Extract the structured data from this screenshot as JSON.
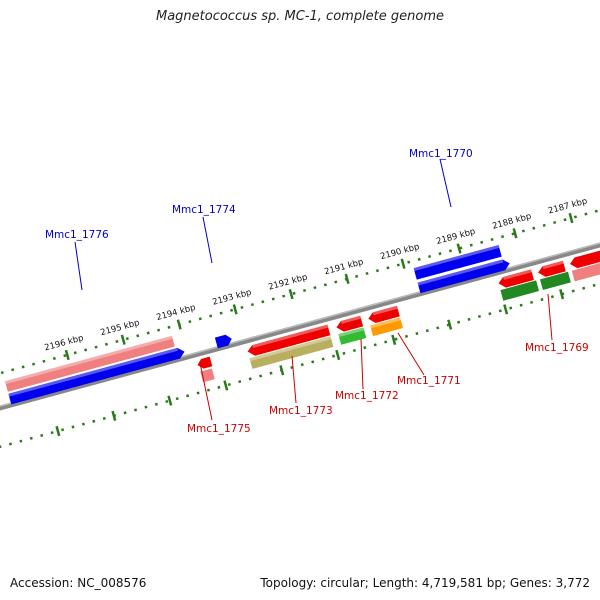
{
  "title": "Magnetococcus sp. MC-1, complete genome",
  "accession": "Accession: NC_008576",
  "summary": "Topology: circular; Length: 4,719,581 bp; Genes: 3,772",
  "colors": {
    "plus_strand": "#0000ee",
    "minus_strand": "#ee0000",
    "plus_label": "#0000cc",
    "minus_label": "#cc0000",
    "ruler": "#2a7a1a",
    "backbone": "#888888",
    "pink": "#f08080",
    "olive": "#b8b060",
    "green": "#33bb33",
    "orange": "#ff9900",
    "darkgreen": "#228822"
  },
  "ruler_labels": [
    "2196 kbp",
    "2195 kbp",
    "2194 kbp",
    "2193 kbp",
    "2192 kbp",
    "2191 kbp",
    "2190 kbp",
    "2189 kbp",
    "2188 kbp",
    "2187 kbp"
  ],
  "gene_labels": [
    {
      "text": "Mmc1_1776",
      "strand": "plus"
    },
    {
      "text": "Mmc1_1774",
      "strand": "plus"
    },
    {
      "text": "Mmc1_1770",
      "strand": "plus"
    },
    {
      "text": "Mmc1_1775",
      "strand": "minus"
    },
    {
      "text": "Mmc1_1773",
      "strand": "minus"
    },
    {
      "text": "Mmc1_1772",
      "strand": "minus"
    },
    {
      "text": "Mmc1_1771",
      "strand": "minus"
    },
    {
      "text": "Mmc1_1769",
      "strand": "minus"
    }
  ]
}
